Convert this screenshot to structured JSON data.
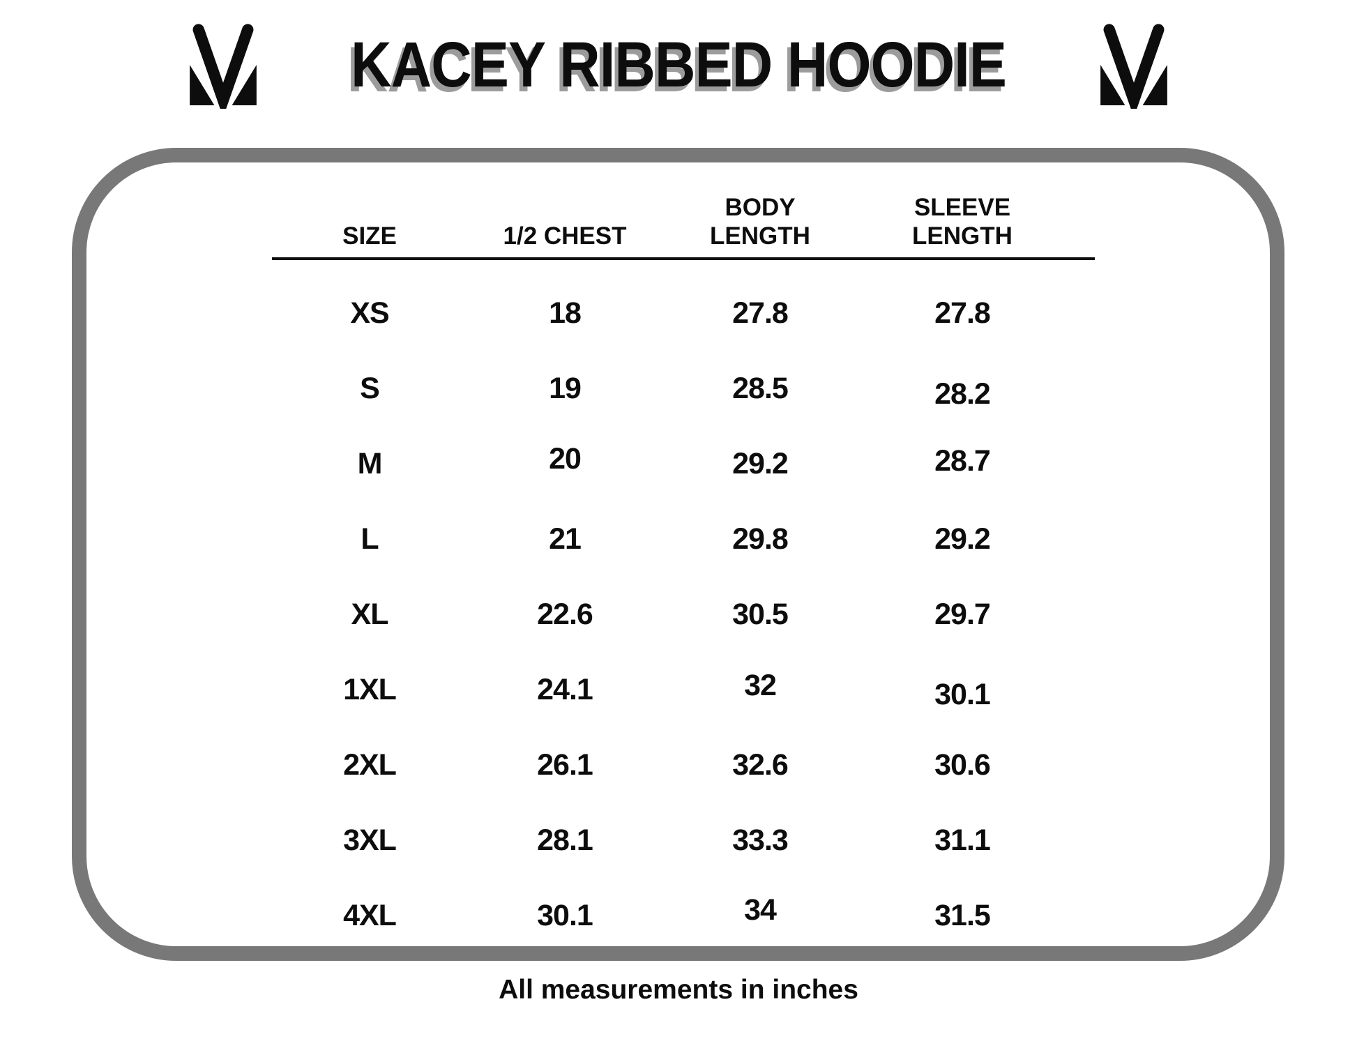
{
  "page": {
    "title": "KACEY RIBBED HOODIE",
    "footer_note": "All measurements in inches"
  },
  "logo": {
    "name": "mv-monogram-logo"
  },
  "size_chart": {
    "headers": [
      "SIZE",
      "1/2 CHEST",
      "BODY\nLENGTH",
      "SLEEVE\nLENGTH"
    ],
    "rows": [
      {
        "size": "XS",
        "half_chest": "18",
        "body_length": "27.8",
        "sleeve_length": "27.8"
      },
      {
        "size": "S",
        "half_chest": "19",
        "body_length": "28.5",
        "sleeve_length": "28.2"
      },
      {
        "size": "M",
        "half_chest": "20",
        "body_length": "29.2",
        "sleeve_length": "28.7"
      },
      {
        "size": "L",
        "half_chest": "21",
        "body_length": "29.8",
        "sleeve_length": "29.2"
      },
      {
        "size": "XL",
        "half_chest": "22.6",
        "body_length": "30.5",
        "sleeve_length": "29.7"
      },
      {
        "size": "1XL",
        "half_chest": "24.1",
        "body_length": "32",
        "sleeve_length": "30.1"
      },
      {
        "size": "2XL",
        "half_chest": "26.1",
        "body_length": "32.6",
        "sleeve_length": "30.6"
      },
      {
        "size": "3XL",
        "half_chest": "28.1",
        "body_length": "33.3",
        "sleeve_length": "31.1"
      },
      {
        "size": "4XL",
        "half_chest": "30.1",
        "body_length": "34",
        "sleeve_length": "31.5"
      }
    ]
  },
  "colors": {
    "text": "#0d0d0d",
    "panel_border": "#787878",
    "title_shadow": "#9c9c9c",
    "background": "#ffffff"
  }
}
